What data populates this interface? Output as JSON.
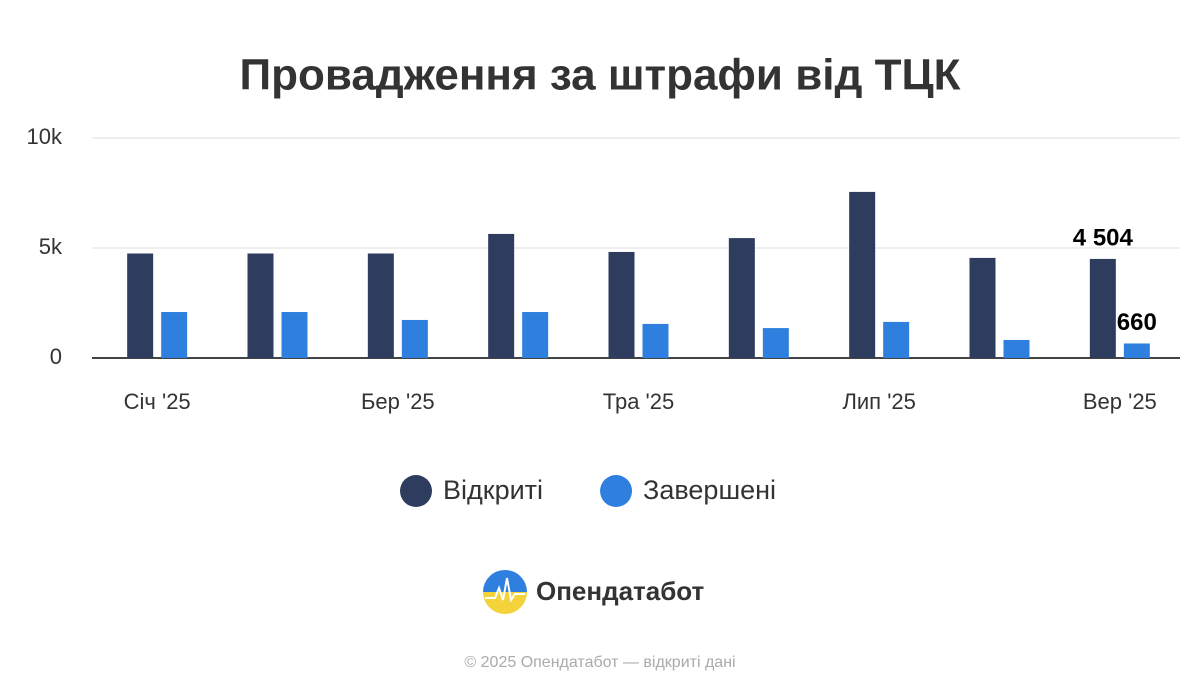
{
  "chart_data": {
    "type": "bar",
    "title": "Провадження за штрафи від ТЦК",
    "categories": [
      "Січ '25",
      null,
      "Бер '25",
      null,
      "Тра '25",
      null,
      "Лип '25",
      null,
      "Вер '25"
    ],
    "series": [
      {
        "name": "Відкриті",
        "color": "#2e3d5e",
        "values": [
          4750,
          4750,
          4750,
          5640,
          4820,
          5450,
          7550,
          4550,
          4504
        ],
        "value_labels": [
          null,
          null,
          null,
          null,
          null,
          null,
          null,
          null,
          "4 504"
        ]
      },
      {
        "name": "Завершені",
        "color": "#2f80de",
        "values": [
          2090,
          2090,
          1730,
          2090,
          1550,
          1360,
          1640,
          820,
          660
        ],
        "value_labels": [
          null,
          null,
          null,
          null,
          null,
          null,
          null,
          null,
          "660"
        ]
      }
    ],
    "ylim": [
      0,
      10000
    ],
    "yticks": [
      0,
      {
        "value": 5000,
        "label": "5k"
      },
      {
        "value": 10000,
        "label": "10k"
      }
    ],
    "grid": true,
    "legend": "bottom"
  },
  "brand": "Опендатабот",
  "footer": "© 2025 Опендатабот — відкриті дані"
}
